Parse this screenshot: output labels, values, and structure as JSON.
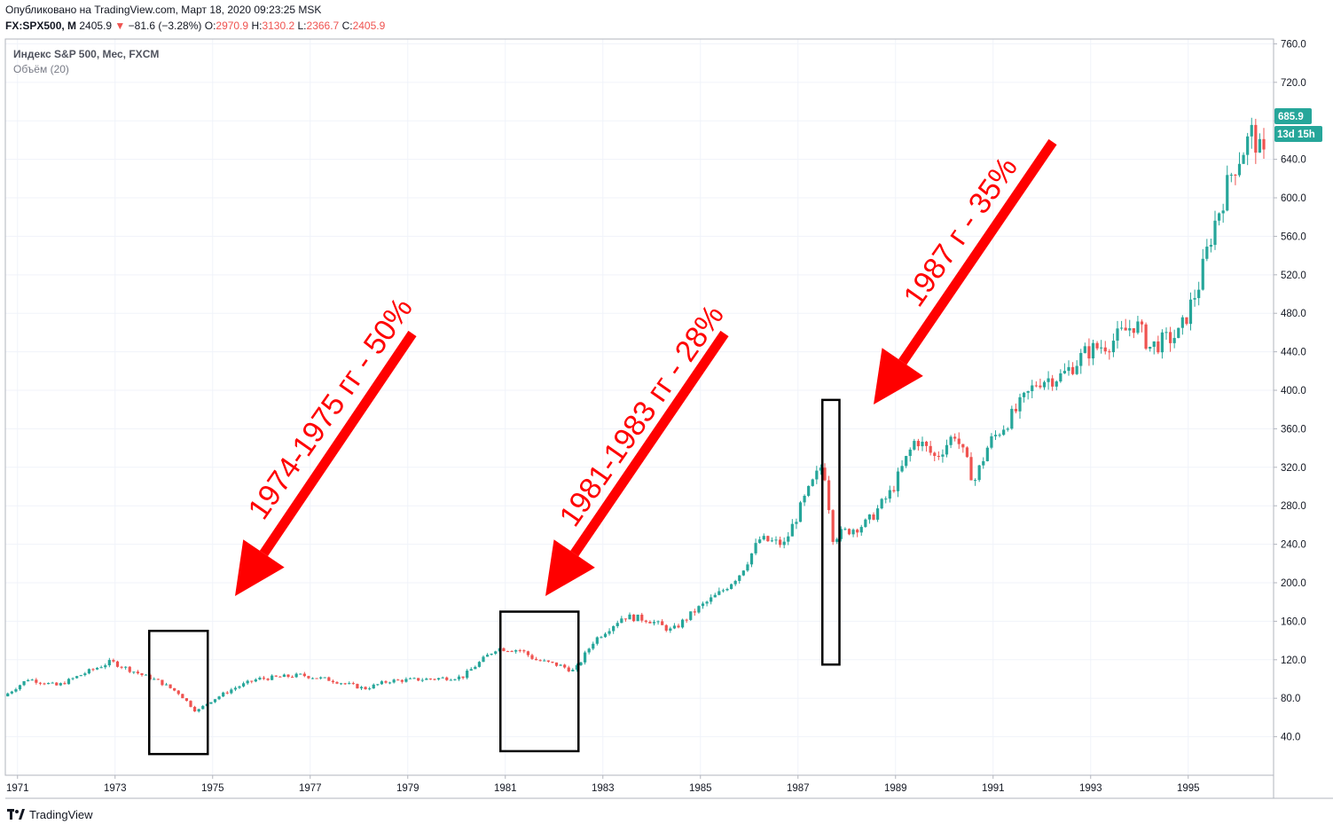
{
  "header": {
    "published": "Опубликовано на TradingView.com, Март 18, 2020 09:23:25 MSK",
    "symbol": "FX:SPX500, M",
    "last": "2405.9",
    "change_arrow": "▼",
    "change": "−81.6 (−3.28%)",
    "o_label": "O:",
    "o": "2970.9",
    "h_label": "H:",
    "h": "3130.2",
    "l_label": "L:",
    "l": "2366.7",
    "c_label": "C:",
    "c": "2405.9"
  },
  "legend": {
    "title": "Индекс S&P 500, Мес, FXCM",
    "volume": "Объём (20)"
  },
  "price_badge": {
    "value": "685.9",
    "countdown": "13d 15h",
    "color": "#26a69a"
  },
  "footer": {
    "brand": "TradingView",
    "logo_icon": "tradingview-logo-icon"
  },
  "colors": {
    "up": "#26a69a",
    "down": "#ef5350",
    "grid": "#f0f3fa",
    "annotation": "#ff0000"
  },
  "annotations": [
    {
      "text": "1974-1975 гг - 50%"
    },
    {
      "text": "1981-1983 гг - 28%"
    },
    {
      "text": "1987 г - 35%"
    }
  ],
  "chart_data": {
    "type": "candlestick",
    "interval": "monthly",
    "y_ticks": [
      "760.0",
      "720.0",
      "680.0",
      "640.0",
      "600.0",
      "560.0",
      "520.0",
      "480.0",
      "440.0",
      "400.0",
      "360.0",
      "320.0",
      "280.0",
      "240.0",
      "200.0",
      "160.0",
      "120.0",
      "80.0",
      "40.0"
    ],
    "x_ticks": [
      "1971",
      "1973",
      "1975",
      "1977",
      "1979",
      "1981",
      "1983",
      "1985",
      "1987",
      "1989",
      "1991",
      "1993",
      "1995"
    ],
    "ylim": [
      0,
      765
    ],
    "xlim": [
      1970.75,
      1996.75
    ],
    "price_path": [
      [
        1970.8,
        82
      ],
      [
        1971.3,
        100
      ],
      [
        1971.9,
        93
      ],
      [
        1972.5,
        107
      ],
      [
        1973.0,
        118
      ],
      [
        1973.6,
        105
      ],
      [
        1974.0,
        97
      ],
      [
        1974.4,
        85
      ],
      [
        1974.75,
        66
      ],
      [
        1975.0,
        76
      ],
      [
        1975.5,
        90
      ],
      [
        1976.0,
        100
      ],
      [
        1976.9,
        104
      ],
      [
        1977.5,
        99
      ],
      [
        1978.2,
        90
      ],
      [
        1978.7,
        98
      ],
      [
        1979.5,
        100
      ],
      [
        1980.2,
        102
      ],
      [
        1980.5,
        115
      ],
      [
        1980.9,
        132
      ],
      [
        1981.4,
        130
      ],
      [
        1981.7,
        120
      ],
      [
        1982.2,
        114
      ],
      [
        1982.5,
        108
      ],
      [
        1982.9,
        140
      ],
      [
        1983.5,
        165
      ],
      [
        1984.0,
        162
      ],
      [
        1984.5,
        150
      ],
      [
        1985.0,
        172
      ],
      [
        1985.5,
        190
      ],
      [
        1985.9,
        210
      ],
      [
        1986.3,
        245
      ],
      [
        1986.8,
        240
      ],
      [
        1987.2,
        285
      ],
      [
        1987.6,
        325
      ],
      [
        1987.8,
        248
      ],
      [
        1988.5,
        262
      ],
      [
        1989.0,
        295
      ],
      [
        1989.5,
        350
      ],
      [
        1989.9,
        330
      ],
      [
        1990.3,
        355
      ],
      [
        1990.7,
        305
      ],
      [
        1991.0,
        345
      ],
      [
        1991.5,
        375
      ],
      [
        1992.0,
        410
      ],
      [
        1992.5,
        415
      ],
      [
        1993.0,
        440
      ],
      [
        1993.5,
        450
      ],
      [
        1994.0,
        470
      ],
      [
        1994.3,
        445
      ],
      [
        1994.9,
        458
      ],
      [
        1995.3,
        510
      ],
      [
        1995.6,
        570
      ],
      [
        1996.0,
        630
      ],
      [
        1996.4,
        668
      ],
      [
        1996.6,
        640
      ]
    ],
    "highlight_boxes": [
      [
        1973.7,
        1974.9,
        22,
        150
      ],
      [
        1980.9,
        1982.5,
        25,
        170
      ],
      [
        1987.5,
        1987.85,
        115,
        390
      ]
    ]
  }
}
